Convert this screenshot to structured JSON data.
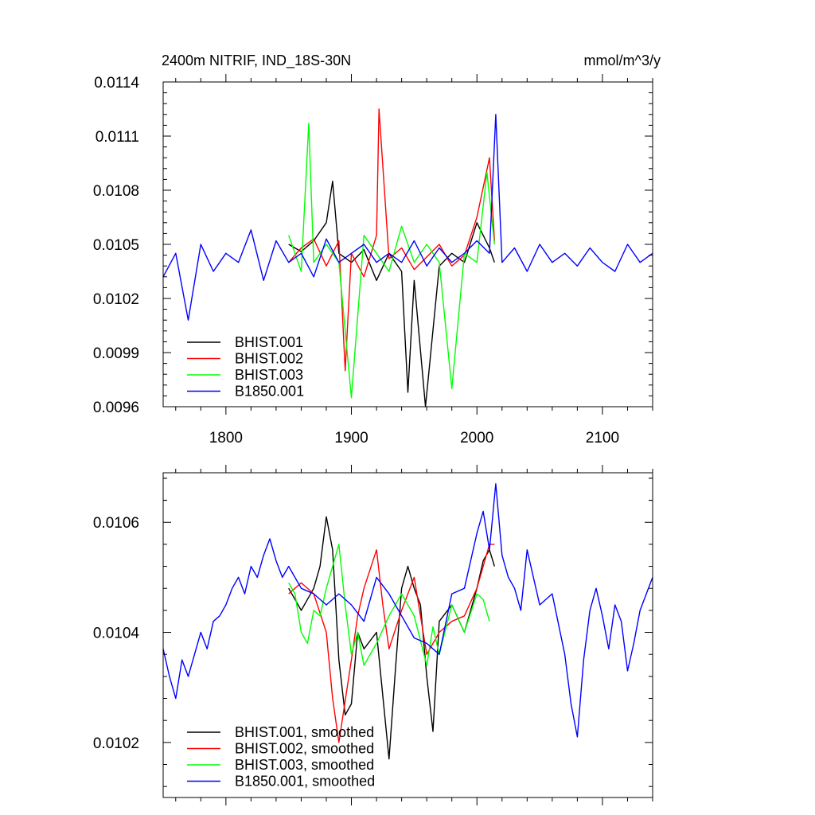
{
  "chart_data": [
    {
      "type": "line",
      "title": "2400m NITRIF, IND_18S-30N",
      "units": "mmol/m^3/y",
      "xlim": [
        1750,
        2140
      ],
      "ylim": [
        0.0096,
        0.0114
      ],
      "xticks": [
        1800,
        1900,
        2000,
        2100
      ],
      "xtick_labels": [
        "1800",
        "1900",
        "2000",
        "2100"
      ],
      "yticks": [
        0.0096,
        0.0099,
        0.0102,
        0.0105,
        0.0108,
        0.0111,
        0.0114
      ],
      "ytick_labels": [
        "0.0096",
        "0.0099",
        "0.0102",
        "0.0105",
        "0.0108",
        "0.0111",
        "0.0114"
      ],
      "legend": "bottom-left",
      "grid": false,
      "series": [
        {
          "name": "BHIST.001",
          "color": "#000000",
          "x": [
            1850,
            1860,
            1870,
            1880,
            1885,
            1890,
            1900,
            1910,
            1920,
            1930,
            1940,
            1945,
            1950,
            1959,
            1970,
            1980,
            1990,
            2000,
            2010,
            2014
          ],
          "y": [
            0.0105,
            0.01046,
            0.01052,
            0.01062,
            0.01085,
            0.01045,
            0.0104,
            0.01047,
            0.0103,
            0.01045,
            0.01035,
            0.00968,
            0.0103,
            0.0096,
            0.01038,
            0.01045,
            0.0104,
            0.01062,
            0.01048,
            0.0104
          ]
        },
        {
          "name": "BHIST.002",
          "color": "#ff0000",
          "x": [
            1850,
            1860,
            1870,
            1880,
            1890,
            1895,
            1900,
            1910,
            1920,
            1922,
            1930,
            1940,
            1950,
            1960,
            1970,
            1980,
            1990,
            2000,
            2010,
            2014
          ],
          "y": [
            0.0104,
            0.01048,
            0.01053,
            0.01038,
            0.01052,
            0.0098,
            0.01045,
            0.01032,
            0.01055,
            0.01125,
            0.01042,
            0.01048,
            0.01036,
            0.01043,
            0.0105,
            0.01038,
            0.01044,
            0.01065,
            0.01098,
            0.01052
          ]
        },
        {
          "name": "BHIST.003",
          "color": "#00ff00",
          "x": [
            1850,
            1860,
            1866,
            1870,
            1880,
            1890,
            1900,
            1910,
            1920,
            1930,
            1940,
            1950,
            1960,
            1970,
            1980,
            1990,
            2000,
            2008,
            2014
          ],
          "y": [
            0.01055,
            0.01035,
            0.01117,
            0.0104,
            0.0105,
            0.0104,
            0.00965,
            0.01055,
            0.01045,
            0.01035,
            0.0106,
            0.0104,
            0.0105,
            0.0104,
            0.0097,
            0.01045,
            0.0104,
            0.0109,
            0.0105
          ]
        },
        {
          "name": "B1850.001",
          "color": "#0000ff",
          "x": [
            1750,
            1760,
            1770,
            1780,
            1790,
            1800,
            1810,
            1820,
            1830,
            1840,
            1850,
            1860,
            1870,
            1880,
            1890,
            1900,
            1910,
            1920,
            1930,
            1940,
            1950,
            1960,
            1970,
            1980,
            1990,
            2000,
            2010,
            2015,
            2020,
            2030,
            2040,
            2050,
            2060,
            2070,
            2080,
            2090,
            2100,
            2110,
            2120,
            2130,
            2140
          ],
          "y": [
            0.01032,
            0.01045,
            0.01008,
            0.0105,
            0.01035,
            0.01045,
            0.0104,
            0.01058,
            0.0103,
            0.01052,
            0.0104,
            0.01045,
            0.01032,
            0.01053,
            0.0104,
            0.01045,
            0.0105,
            0.0104,
            0.01045,
            0.0104,
            0.01052,
            0.01038,
            0.01048,
            0.0104,
            0.01045,
            0.01052,
            0.01045,
            0.01122,
            0.0104,
            0.01048,
            0.01035,
            0.0105,
            0.0104,
            0.01045,
            0.01038,
            0.01048,
            0.0104,
            0.01035,
            0.0105,
            0.0104,
            0.01045
          ]
        }
      ]
    },
    {
      "type": "line",
      "xlim": [
        1750,
        2140
      ],
      "ylim": [
        0.0101,
        0.01069
      ],
      "xticks": [
        1800,
        1900,
        2000,
        2100
      ],
      "yticks": [
        0.0102,
        0.0104,
        0.0106
      ],
      "ytick_labels": [
        "0.0102",
        "0.0104",
        "0.0106"
      ],
      "legend": "bottom-left",
      "grid": false,
      "series": [
        {
          "name": "BHIST.001, smoothed",
          "color": "#000000",
          "x": [
            1850,
            1860,
            1870,
            1875,
            1880,
            1885,
            1890,
            1895,
            1900,
            1905,
            1910,
            1920,
            1930,
            1935,
            1940,
            1945,
            1950,
            1955,
            1960,
            1965,
            1970,
            1980,
            1990,
            2000,
            2005,
            2010,
            2014
          ],
          "y": [
            0.01048,
            0.01044,
            0.01048,
            0.01052,
            0.01061,
            0.01055,
            0.01035,
            0.01025,
            0.01027,
            0.0104,
            0.01037,
            0.0104,
            0.01017,
            0.01033,
            0.01048,
            0.01052,
            0.01048,
            0.01045,
            0.01032,
            0.01022,
            0.01042,
            0.01045,
            0.0104,
            0.01048,
            0.01053,
            0.01055,
            0.01052
          ]
        },
        {
          "name": "BHIST.002, smoothed",
          "color": "#ff0000",
          "x": [
            1850,
            1860,
            1870,
            1880,
            1885,
            1890,
            1900,
            1905,
            1910,
            1920,
            1925,
            1930,
            1940,
            1950,
            1955,
            1960,
            1970,
            1980,
            1990,
            2000,
            2005,
            2010,
            2014
          ],
          "y": [
            0.01047,
            0.01049,
            0.01047,
            0.0104,
            0.01028,
            0.0102,
            0.01035,
            0.01043,
            0.01048,
            0.01055,
            0.01045,
            0.01037,
            0.01044,
            0.0105,
            0.01043,
            0.01036,
            0.0104,
            0.01042,
            0.01043,
            0.01048,
            0.01052,
            0.01056,
            0.01056
          ]
        },
        {
          "name": "BHIST.003, smoothed",
          "color": "#00ff00",
          "x": [
            1850,
            1855,
            1860,
            1865,
            1870,
            1875,
            1880,
            1890,
            1895,
            1900,
            1905,
            1910,
            1920,
            1930,
            1940,
            1950,
            1960,
            1965,
            1970,
            1980,
            1990,
            2000,
            2005,
            2010
          ],
          "y": [
            0.01049,
            0.01047,
            0.0104,
            0.01038,
            0.01044,
            0.01043,
            0.01048,
            0.01056,
            0.01045,
            0.01036,
            0.0104,
            0.01034,
            0.01038,
            0.01043,
            0.01047,
            0.01043,
            0.01034,
            0.01041,
            0.01036,
            0.01045,
            0.0104,
            0.01047,
            0.01046,
            0.01042
          ]
        },
        {
          "name": "B1850.001, smoothed",
          "color": "#0000ff",
          "x": [
            1750,
            1755,
            1760,
            1765,
            1770,
            1775,
            1780,
            1785,
            1790,
            1795,
            1800,
            1805,
            1810,
            1815,
            1820,
            1825,
            1830,
            1835,
            1840,
            1845,
            1850,
            1860,
            1870,
            1880,
            1890,
            1900,
            1910,
            1920,
            1930,
            1940,
            1950,
            1960,
            1970,
            1980,
            1990,
            2000,
            2005,
            2010,
            2015,
            2020,
            2025,
            2030,
            2035,
            2040,
            2050,
            2060,
            2070,
            2075,
            2080,
            2085,
            2090,
            2095,
            2100,
            2105,
            2110,
            2115,
            2120,
            2125,
            2130,
            2135,
            2140
          ],
          "y": [
            0.01037,
            0.01032,
            0.01028,
            0.01035,
            0.01032,
            0.01036,
            0.0104,
            0.01037,
            0.01042,
            0.01043,
            0.01045,
            0.01048,
            0.0105,
            0.01047,
            0.01052,
            0.0105,
            0.01054,
            0.01057,
            0.01053,
            0.0105,
            0.01052,
            0.01048,
            0.01047,
            0.01045,
            0.01047,
            0.01045,
            0.01042,
            0.0105,
            0.01047,
            0.01043,
            0.01039,
            0.01038,
            0.01036,
            0.01047,
            0.01048,
            0.01058,
            0.01062,
            0.01055,
            0.01067,
            0.01054,
            0.0105,
            0.01048,
            0.01044,
            0.01055,
            0.01045,
            0.01047,
            0.01036,
            0.01027,
            0.01021,
            0.01035,
            0.01044,
            0.01048,
            0.01043,
            0.01037,
            0.01045,
            0.01042,
            0.01033,
            0.01038,
            0.01044,
            0.01047,
            0.0105
          ]
        }
      ]
    }
  ]
}
